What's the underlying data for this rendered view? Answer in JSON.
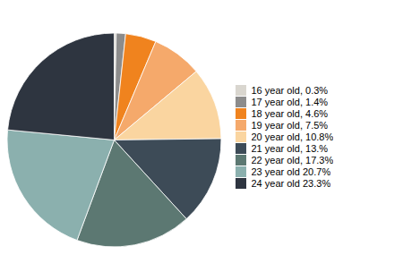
{
  "chart_data": {
    "type": "pie",
    "categories": [
      "16 year old, 0.3%",
      "17 year old, 1.4%",
      "18 year old, 4.6%",
      "19 year old, 7.5%",
      "20 year old, 10.8%",
      "21 year old, 13.%",
      "22 year old, 17.3%",
      "23 year old 20.7%",
      "24 year old 23.3%"
    ],
    "values": [
      0.3,
      1.4,
      4.6,
      7.5,
      10.8,
      13.3,
      17.3,
      20.7,
      23.3
    ],
    "colors": [
      "#d9d6cf",
      "#8c8c8c",
      "#f0831e",
      "#f5a96b",
      "#fad5a0",
      "#3d4b57",
      "#5c7872",
      "#8bb0ae",
      "#2e3540"
    ],
    "legend": "right"
  }
}
